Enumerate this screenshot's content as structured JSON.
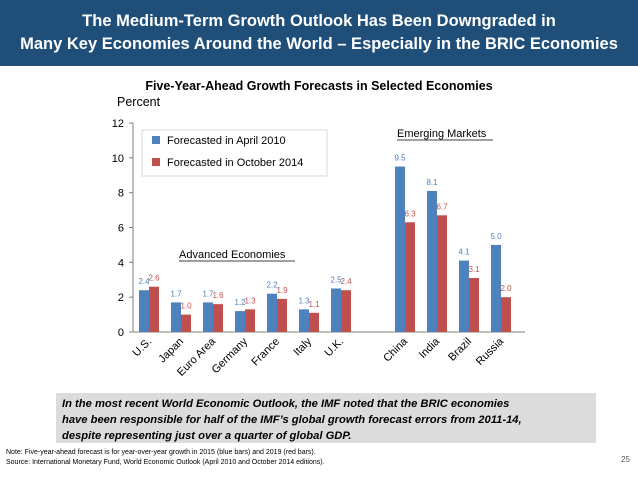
{
  "header": {
    "line1": "The Medium-Term Growth Outlook Has Been Downgraded in",
    "line2": "Many Key Economies Around the World – Especially in the BRIC Economies"
  },
  "chart_data": {
    "type": "bar",
    "title": "Five-Year-Ahead Growth Forecasts in Selected Economies",
    "ylabel": "Percent",
    "ylim": [
      0,
      12
    ],
    "yticks": [
      0,
      2,
      4,
      6,
      8,
      10,
      12
    ],
    "grid": false,
    "legend_position": "top-left",
    "categories": [
      "U.S.",
      "Japan",
      "Euro Area",
      "Germany",
      "France",
      "Italy",
      "U.K.",
      "China",
      "India",
      "Brazil",
      "Russia"
    ],
    "series": [
      {
        "name": "Forecasted in April 2010",
        "color": "#4f81bd",
        "values": [
          2.4,
          1.7,
          1.7,
          1.2,
          2.2,
          1.3,
          2.5,
          9.5,
          8.1,
          4.1,
          5.0
        ]
      },
      {
        "name": "Forecasted in October 2014",
        "color": "#c0504d",
        "values": [
          2.6,
          1.0,
          1.6,
          1.3,
          1.9,
          1.1,
          2.4,
          6.3,
          6.7,
          3.1,
          2.0
        ]
      }
    ],
    "group_labels": {
      "advanced": "Advanced Economies",
      "emerging": "Emerging Markets"
    }
  },
  "callout": {
    "line1": "In the most recent World Economic Outlook, the IMF noted that the BRIC economies",
    "line2": "have been responsible for half of the IMF’s global growth forecast errors from 2011-14,",
    "line3": "despite representing just over a quarter of global GDP."
  },
  "notes": {
    "note": "Note: Five-year-ahead forecast is for year-over-year growth in 2015 (blue bars) and 2019 (red bars).",
    "source": "Source: International Monetary Fund, World Economic Outlook (April 2010 and October 2014 editions)."
  },
  "page_number": "25"
}
